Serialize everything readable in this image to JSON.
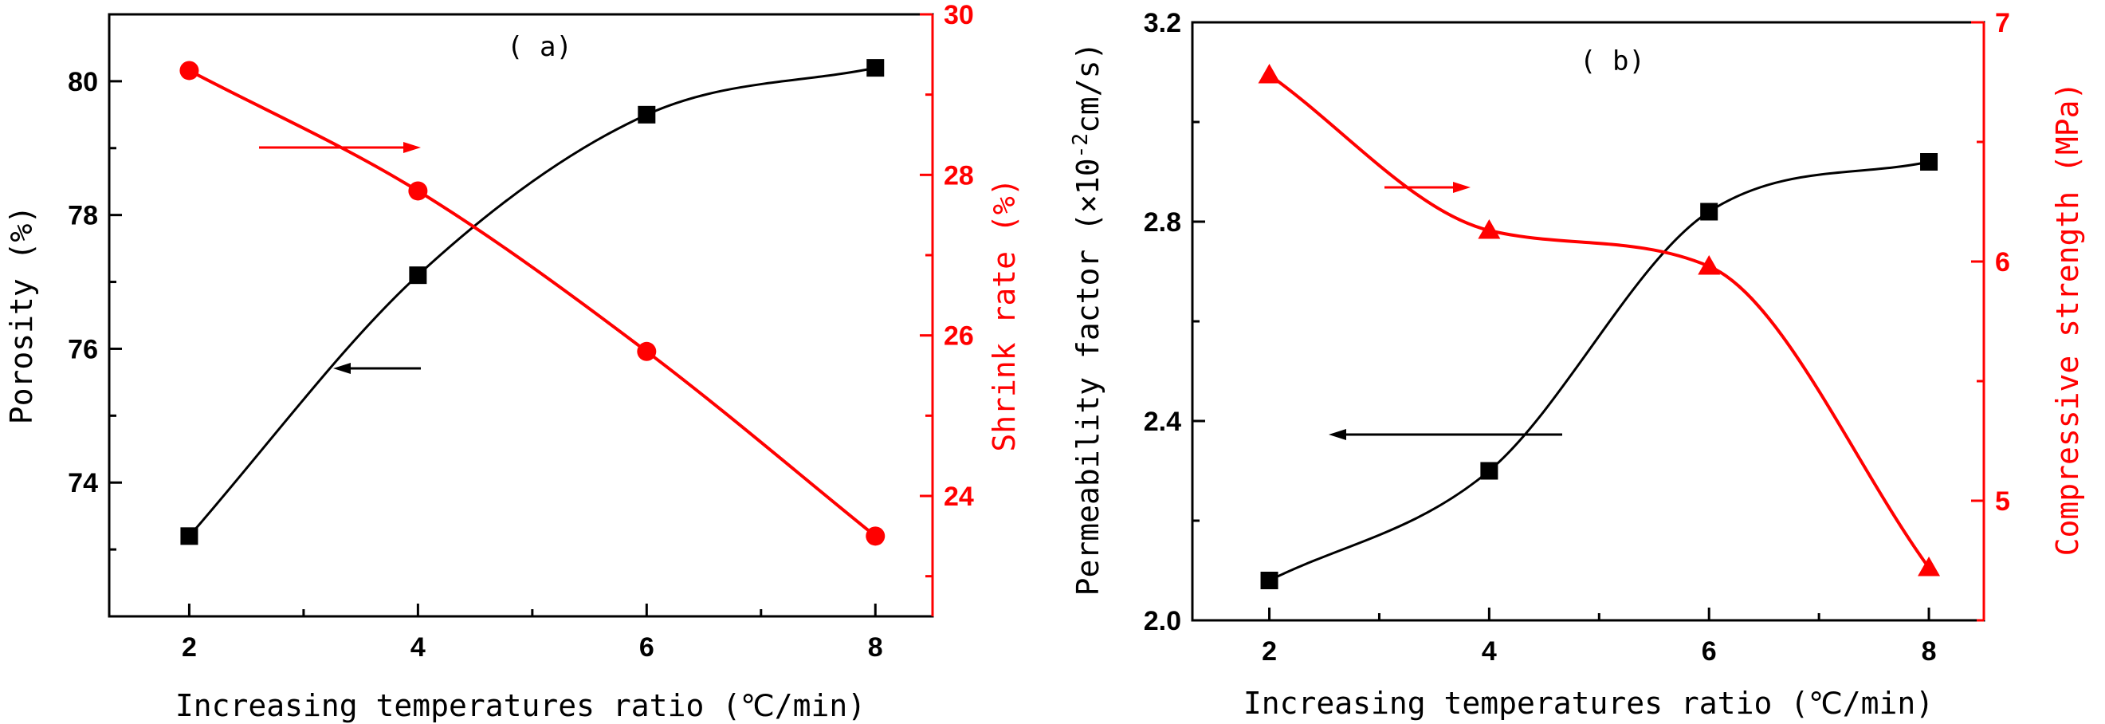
{
  "chart_data": [
    {
      "type": "line",
      "panel_label": "( a)",
      "xlabel": "Increasing temperatures ratio (℃/min)",
      "ylabel": "Porosity (%)",
      "y2label": "Shrink rate (%)",
      "x": [
        2,
        4,
        6,
        8
      ],
      "xlim": [
        1.3,
        8.5
      ],
      "ylim": [
        72,
        81
      ],
      "y2lim": [
        22.5,
        30
      ],
      "xticks": [
        2,
        4,
        6,
        8
      ],
      "yticks": [
        74,
        76,
        78,
        80
      ],
      "y2ticks": [
        24,
        26,
        28,
        30
      ],
      "series": [
        {
          "axis": "left",
          "marker": "square",
          "color": "#000000",
          "values": [
            73.2,
            77.1,
            79.5,
            80.2
          ]
        },
        {
          "axis": "right",
          "marker": "circle",
          "color": "#ff0000",
          "values": [
            29.3,
            27.8,
            25.8,
            23.5
          ]
        }
      ],
      "arrows": [
        {
          "direction": "right",
          "color": "#ff0000",
          "points_to": "right-axis"
        },
        {
          "direction": "left",
          "color": "#000000",
          "points_to": "left-axis"
        }
      ],
      "grid": false
    },
    {
      "type": "line",
      "panel_label": "( b)",
      "xlabel": "Increasing temperatures ratio (℃/min)",
      "ylabel": "Permeability factor (×10-2cm/s)",
      "y2label": "Compressive strength (MPa)",
      "x": [
        2,
        4,
        6,
        8
      ],
      "xlim": [
        1.3,
        8.5
      ],
      "ylim": [
        2.0,
        3.2
      ],
      "y2lim": [
        4.5,
        7
      ],
      "xticks": [
        2,
        4,
        6,
        8
      ],
      "yticks": [
        2.0,
        2.4,
        2.8,
        3.2
      ],
      "y2ticks": [
        5,
        6,
        7
      ],
      "series": [
        {
          "axis": "left",
          "marker": "square",
          "color": "#000000",
          "values": [
            2.08,
            2.3,
            2.82,
            2.92
          ]
        },
        {
          "axis": "right",
          "marker": "triangle",
          "color": "#ff0000",
          "values": [
            6.78,
            6.13,
            5.98,
            4.72
          ]
        }
      ],
      "arrows": [
        {
          "direction": "right",
          "color": "#ff0000",
          "points_to": "right-axis"
        },
        {
          "direction": "left",
          "color": "#000000",
          "points_to": "left-axis"
        }
      ],
      "grid": false
    }
  ]
}
